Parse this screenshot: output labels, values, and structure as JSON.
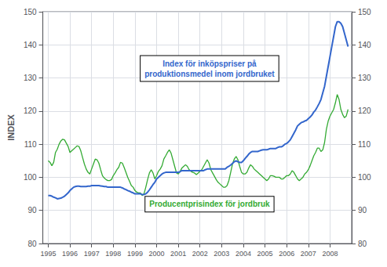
{
  "chart_data": {
    "type": "line",
    "ylabel": "INDEX",
    "xlim": [
      1994.75,
      2009.0
    ],
    "xticks": [
      1995,
      1996,
      1997,
      1998,
      1999,
      2000,
      2001,
      2002,
      2003,
      2004,
      2005,
      2006,
      2007,
      2008
    ],
    "ylim": [
      80,
      150
    ],
    "yticks": [
      80,
      90,
      100,
      110,
      120,
      130,
      140,
      150
    ],
    "y2lim": [
      80,
      150
    ],
    "y2ticks": [
      80,
      90,
      100,
      110,
      120,
      130,
      140,
      150
    ],
    "grid": true,
    "x": [
      1995.0,
      1995.083,
      1995.167,
      1995.25,
      1995.333,
      1995.417,
      1995.5,
      1995.583,
      1995.667,
      1995.75,
      1995.833,
      1995.917,
      1996.0,
      1996.083,
      1996.167,
      1996.25,
      1996.333,
      1996.417,
      1996.5,
      1996.583,
      1996.667,
      1996.75,
      1996.833,
      1996.917,
      1997.0,
      1997.083,
      1997.167,
      1997.25,
      1997.333,
      1997.417,
      1997.5,
      1997.583,
      1997.667,
      1997.75,
      1997.833,
      1997.917,
      1998.0,
      1998.083,
      1998.167,
      1998.25,
      1998.333,
      1998.417,
      1998.5,
      1998.583,
      1998.667,
      1998.75,
      1998.833,
      1998.917,
      1999.0,
      1999.083,
      1999.167,
      1999.25,
      1999.333,
      1999.417,
      1999.5,
      1999.583,
      1999.667,
      1999.75,
      1999.833,
      1999.917,
      2000.0,
      2000.083,
      2000.167,
      2000.25,
      2000.333,
      2000.417,
      2000.5,
      2000.583,
      2000.667,
      2000.75,
      2000.833,
      2000.917,
      2001.0,
      2001.083,
      2001.167,
      2001.25,
      2001.333,
      2001.417,
      2001.5,
      2001.583,
      2001.667,
      2001.75,
      2001.833,
      2001.917,
      2002.0,
      2002.083,
      2002.167,
      2002.25,
      2002.333,
      2002.417,
      2002.5,
      2002.583,
      2002.667,
      2002.75,
      2002.833,
      2002.917,
      2003.0,
      2003.083,
      2003.167,
      2003.25,
      2003.333,
      2003.417,
      2003.5,
      2003.583,
      2003.667,
      2003.75,
      2003.833,
      2003.917,
      2004.0,
      2004.083,
      2004.167,
      2004.25,
      2004.333,
      2004.417,
      2004.5,
      2004.583,
      2004.667,
      2004.75,
      2004.833,
      2004.917,
      2005.0,
      2005.083,
      2005.167,
      2005.25,
      2005.333,
      2005.417,
      2005.5,
      2005.583,
      2005.667,
      2005.75,
      2005.833,
      2005.917,
      2006.0,
      2006.083,
      2006.167,
      2006.25,
      2006.333,
      2006.417,
      2006.5,
      2006.583,
      2006.667,
      2006.75,
      2006.833,
      2006.917,
      2007.0,
      2007.083,
      2007.167,
      2007.25,
      2007.333,
      2007.417,
      2007.5,
      2007.583,
      2007.667,
      2007.75,
      2007.833,
      2007.917,
      2008.0,
      2008.083,
      2008.167,
      2008.25,
      2008.333,
      2008.417,
      2008.5,
      2008.583,
      2008.667,
      2008.75,
      2008.833
    ],
    "series": [
      {
        "color": "#33AA33",
        "values": [
          105.0,
          104.5,
          103.5,
          104.5,
          107.5,
          108.5,
          110.0,
          111.0,
          111.5,
          111.3,
          110.3,
          109.3,
          107.5,
          108.0,
          108.5,
          109.0,
          109.5,
          109.3,
          108.0,
          106.0,
          104.0,
          102.5,
          101.5,
          101.0,
          102.5,
          104.0,
          105.5,
          105.3,
          104.3,
          102.3,
          100.5,
          99.8,
          99.3,
          99.0,
          99.0,
          99.3,
          100.5,
          101.3,
          102.3,
          103.0,
          104.5,
          104.3,
          103.0,
          101.5,
          100.0,
          98.8,
          97.5,
          97.0,
          96.0,
          95.5,
          95.3,
          95.3,
          94.5,
          95.0,
          97.0,
          99.3,
          101.3,
          102.3,
          101.3,
          99.5,
          100.5,
          101.8,
          102.5,
          103.5,
          105.5,
          106.5,
          107.5,
          108.3,
          107.3,
          105.3,
          103.3,
          101.3,
          101.0,
          101.8,
          102.8,
          103.3,
          103.8,
          103.3,
          102.3,
          101.8,
          101.5,
          101.3,
          100.8,
          101.3,
          101.8,
          102.3,
          103.3,
          104.3,
          105.3,
          104.3,
          102.3,
          101.3,
          100.3,
          99.3,
          98.5,
          98.0,
          97.5,
          97.0,
          97.0,
          97.5,
          99.0,
          101.5,
          104.0,
          105.5,
          106.3,
          105.3,
          103.3,
          101.5,
          101.0,
          101.0,
          101.5,
          102.8,
          103.8,
          103.3,
          102.5,
          102.0,
          101.5,
          101.0,
          100.5,
          100.0,
          99.5,
          99.0,
          99.5,
          100.5,
          100.5,
          100.3,
          100.0,
          100.0,
          100.0,
          99.5,
          99.5,
          100.0,
          100.5,
          100.5,
          101.0,
          102.0,
          101.5,
          100.5,
          99.5,
          99.0,
          99.5,
          100.0,
          101.0,
          101.5,
          102.3,
          103.5,
          105.0,
          106.5,
          107.5,
          108.8,
          108.8,
          107.8,
          108.3,
          110.5,
          114.5,
          117.0,
          118.5,
          119.5,
          120.5,
          122.5,
          125.0,
          123.5,
          120.5,
          119.0,
          118.0,
          118.5,
          120.5
        ]
      },
      {
        "color": "#3366CC",
        "values": [
          94.5,
          94.5,
          94.3,
          94.0,
          93.8,
          93.5,
          93.6,
          93.7,
          94.0,
          94.3,
          94.8,
          95.3,
          96.0,
          96.5,
          97.0,
          97.2,
          97.3,
          97.3,
          97.2,
          97.2,
          97.2,
          97.2,
          97.3,
          97.3,
          97.5,
          97.5,
          97.5,
          97.5,
          97.5,
          97.4,
          97.3,
          97.2,
          97.2,
          97.0,
          97.0,
          97.0,
          97.0,
          97.0,
          97.0,
          97.0,
          97.0,
          96.8,
          96.5,
          96.3,
          96.0,
          95.8,
          95.5,
          95.3,
          95.0,
          95.0,
          95.0,
          95.0,
          94.8,
          94.8,
          95.0,
          95.5,
          96.2,
          97.0,
          97.8,
          98.5,
          99.5,
          100.0,
          100.5,
          101.0,
          101.3,
          101.5,
          101.5,
          101.5,
          101.5,
          101.5,
          101.5,
          101.5,
          101.5,
          101.7,
          102.0,
          102.0,
          102.0,
          102.0,
          102.0,
          102.0,
          102.0,
          102.0,
          102.0,
          102.0,
          102.0,
          102.0,
          102.0,
          102.3,
          102.5,
          102.5,
          102.5,
          102.5,
          102.5,
          102.5,
          102.5,
          102.5,
          102.5,
          102.5,
          102.5,
          103.0,
          103.3,
          103.7,
          104.2,
          104.7,
          105.0,
          104.7,
          104.5,
          104.5,
          105.0,
          105.7,
          106.3,
          107.0,
          107.5,
          107.8,
          107.8,
          107.8,
          107.8,
          108.0,
          108.2,
          108.3,
          108.3,
          108.3,
          108.5,
          108.7,
          108.7,
          108.7,
          108.7,
          109.0,
          109.2,
          109.2,
          109.5,
          110.0,
          110.2,
          110.7,
          111.3,
          112.3,
          113.3,
          114.3,
          115.5,
          116.0,
          116.5,
          116.7,
          117.0,
          117.2,
          117.7,
          118.2,
          118.8,
          119.7,
          120.3,
          121.3,
          122.3,
          123.5,
          125.5,
          127.5,
          130.5,
          133.5,
          136.5,
          139.5,
          142.5,
          145.5,
          147.0,
          147.0,
          146.5,
          145.5,
          143.5,
          141.5,
          139.5
        ]
      }
    ],
    "annotations": [
      {
        "text": "Index för inköpspriser på\nproduktionsmedel inom jordbruket",
        "color": "#3366CC"
      },
      {
        "text": "Producentprisindex för jordbruk",
        "color": "#33AA33"
      }
    ]
  }
}
